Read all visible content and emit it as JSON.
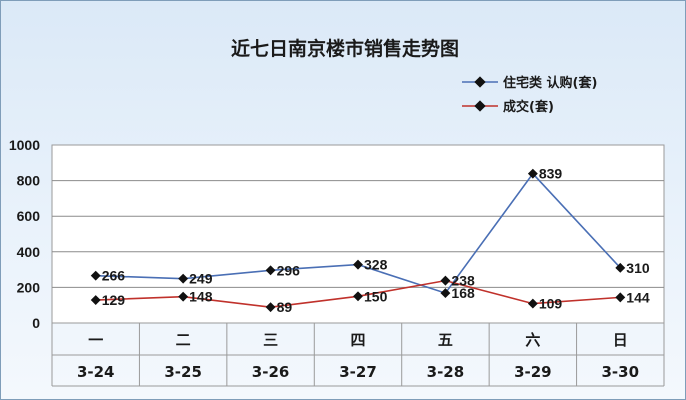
{
  "chart_data": {
    "type": "line",
    "title": "近七日南京楼市销售走势图",
    "categories": [
      "一",
      "二",
      "三",
      "四",
      "五",
      "六",
      "日"
    ],
    "categories_secondary": [
      "3-24",
      "3-25",
      "3-26",
      "3-27",
      "3-28",
      "3-29",
      "3-30"
    ],
    "ylim": [
      0,
      1000
    ],
    "yticks": [
      0,
      200,
      400,
      600,
      800,
      1000
    ],
    "grid": true,
    "legend_position": "top-right",
    "series": [
      {
        "name": "住宅类 认购(套)",
        "color": "#4a6fb5",
        "values": [
          266,
          249,
          296,
          328,
          168,
          839,
          310
        ]
      },
      {
        "name": "成交(套)",
        "color": "#c0312b",
        "values": [
          129,
          148,
          89,
          150,
          238,
          109,
          144
        ]
      }
    ]
  }
}
